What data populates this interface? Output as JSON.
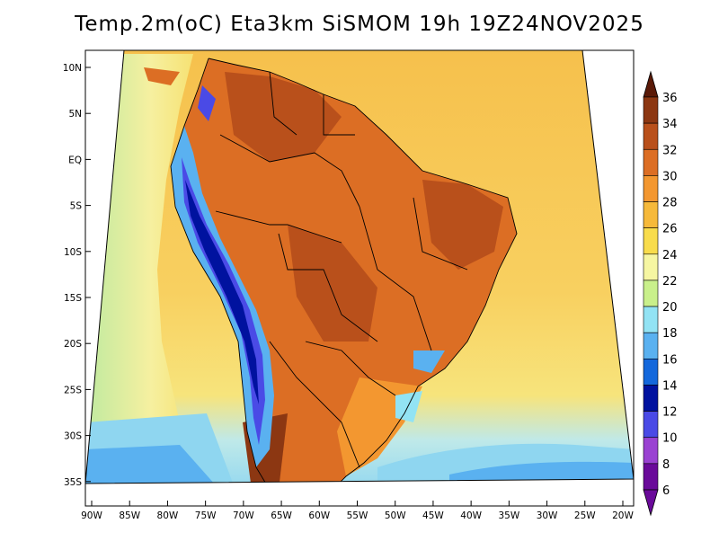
{
  "title": "Temp.2m(oC) Eta3km SiSMOM 19h 19Z24NOV2025",
  "lat_labels": [
    "10N",
    "5N",
    "EQ",
    "5S",
    "10S",
    "15S",
    "20S",
    "25S",
    "30S",
    "35S"
  ],
  "lon_labels": [
    "90W",
    "85W",
    "80W",
    "75W",
    "70W",
    "65W",
    "60W",
    "55W",
    "50W",
    "45W",
    "40W",
    "35W",
    "30W",
    "25W",
    "20W"
  ],
  "colorbar": {
    "labels": [
      "36",
      "34",
      "32",
      "30",
      "28",
      "26",
      "24",
      "22",
      "20",
      "18",
      "16",
      "14",
      "12",
      "10",
      "8",
      "6"
    ],
    "colors": [
      "#5a1a08",
      "#8c3712",
      "#b9501b",
      "#dc6e24",
      "#f39730",
      "#f6b93a",
      "#f8dc4c",
      "#f6f6a2",
      "#c9f08b",
      "#92e3f4",
      "#5ab1f0",
      "#1468dc",
      "#00129f",
      "#4a4ae6",
      "#9a42d2",
      "#6a0a9a"
    ]
  },
  "fill_colors": {
    "ocean_warm": "#f8c250",
    "ocean_cool": "#f6e684",
    "ocean_cold": "#8fd6f0",
    "ocean_colder": "#5ab1f0",
    "land_hot": "#dc6e24",
    "land_hotter": "#b9501b",
    "andes_cold": "#1468dc",
    "andes_colder": "#4a4ae6",
    "south_warm": "#f39730"
  }
}
